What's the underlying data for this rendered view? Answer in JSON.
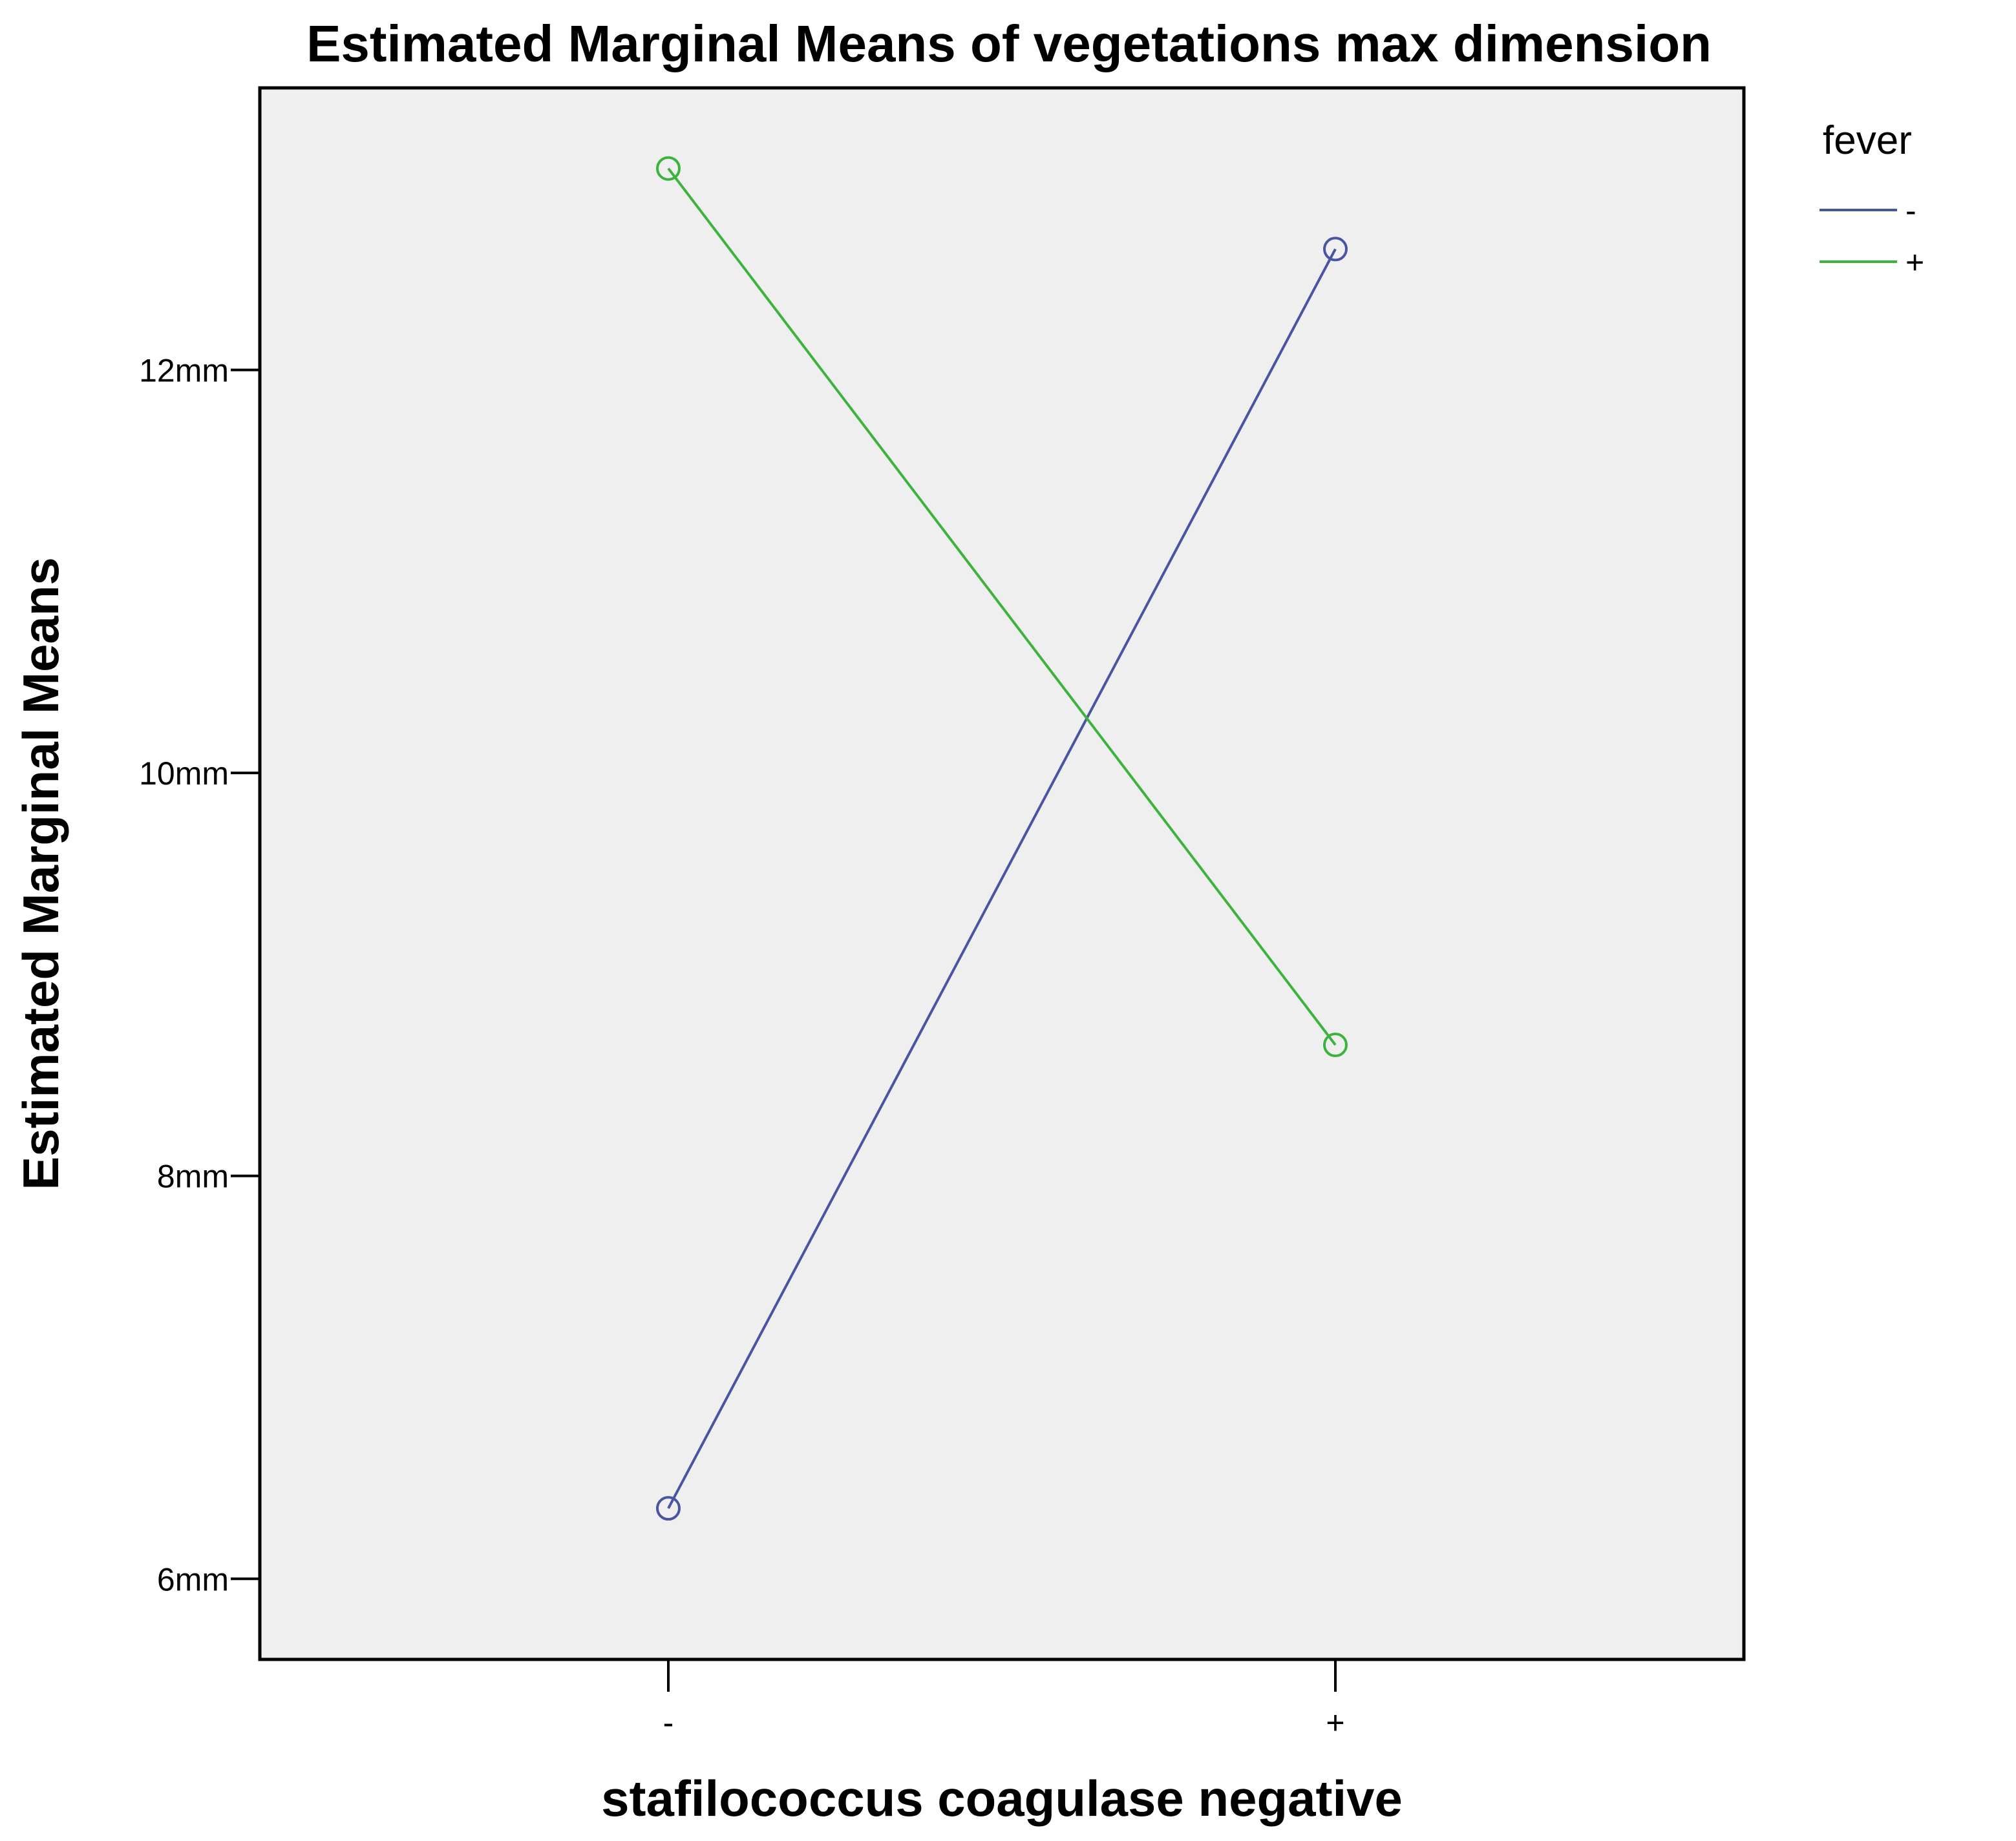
{
  "chart_data": {
    "type": "line",
    "title": "Estimated Marginal Means of vegetations max dimension",
    "xlabel": "stafilococcus coagulase negative",
    "ylabel": "Estimated Marginal Means",
    "categories": [
      "-",
      "+"
    ],
    "ylim": [
      5.6,
      13.4
    ],
    "yticks": [
      {
        "value": 6,
        "label": "6mm"
      },
      {
        "value": 8,
        "label": "8mm"
      },
      {
        "value": 10,
        "label": "10mm"
      },
      {
        "value": 12,
        "label": "12mm"
      }
    ],
    "legend": {
      "title": "fever",
      "placement": "right"
    },
    "series": [
      {
        "name": "-",
        "color": "#4a55a2",
        "values": [
          6.35,
          12.6
        ]
      },
      {
        "name": "+",
        "color": "#3db33d",
        "values": [
          13.0,
          8.65
        ]
      }
    ],
    "grid": false,
    "plot_background": "#efefef"
  }
}
